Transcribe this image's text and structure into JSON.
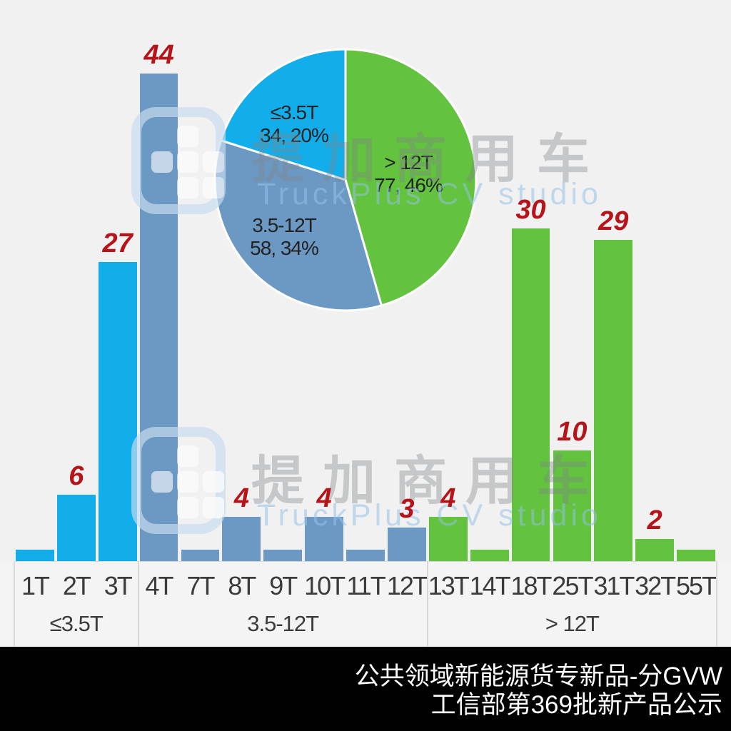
{
  "watermark": {
    "cn": "提加商用车",
    "en": "TruckPlus CV studio",
    "logo_icon": "truckplus-grid-logo"
  },
  "footer": {
    "line1": "公共领域新能源货专新品-分GVW",
    "line2": "工信部第369批新产品公示"
  },
  "colors": {
    "light_blue": "#12aeec",
    "steel_blue": "#6c99c4",
    "green": "#63c23e",
    "value_label_red": "#b4141a",
    "axis_text": "#3b3b3b",
    "background": "#f1f1f1",
    "footer_bg": "#010101",
    "footer_text": "#ffffff"
  },
  "chart_data": [
    {
      "type": "bar",
      "title": "",
      "xlabel": "",
      "ylabel": "",
      "ylim": [
        0,
        46
      ],
      "grid": false,
      "categories": [
        "1T",
        "2T",
        "3T",
        "4T",
        "7T",
        "8T",
        "9T",
        "10T",
        "11T",
        "12T",
        "13T",
        "14T",
        "18T",
        "25T",
        "31T",
        "32T",
        "55T"
      ],
      "values": [
        1,
        6,
        27,
        44,
        1,
        4,
        1,
        4,
        1,
        3,
        4,
        1,
        30,
        10,
        29,
        2,
        1
      ],
      "value_label_min": 2,
      "groups": [
        {
          "label": "≤3.5T",
          "from": 0,
          "to": 2,
          "color": "#12aeec"
        },
        {
          "label": "3.5-12T",
          "from": 3,
          "to": 9,
          "color": "#6c99c4"
        },
        {
          "label": "> 12T",
          "from": 10,
          "to": 16,
          "color": "#63c23e"
        }
      ]
    },
    {
      "type": "pie",
      "start_angle_deg_from_top": 0,
      "direction": "clockwise",
      "legend_position": "inside",
      "slices": [
        {
          "label": "> 12T",
          "value": 77,
          "pct": 46,
          "color": "#63c23e"
        },
        {
          "label": "3.5-12T",
          "value": 58,
          "pct": 34,
          "color": "#6c99c4"
        },
        {
          "label": "≤3.5T",
          "value": 34,
          "pct": 20,
          "color": "#12aeec"
        }
      ]
    }
  ]
}
